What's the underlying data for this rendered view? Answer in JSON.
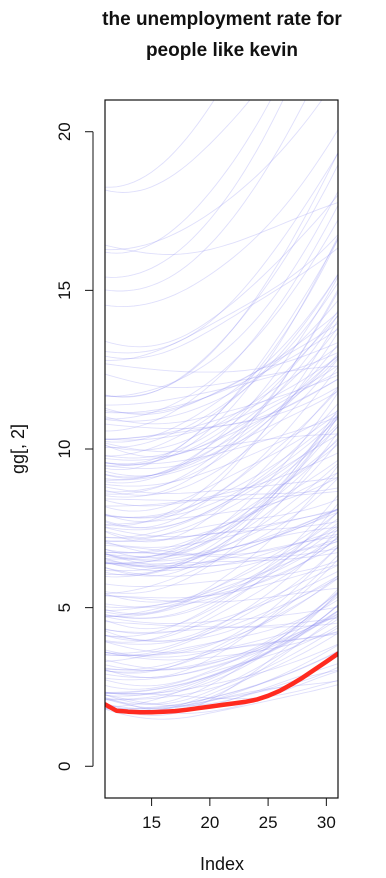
{
  "chart_data": {
    "type": "line",
    "title_lines": [
      "the unemployment rate for",
      "people like kevin"
    ],
    "xlabel": "Index",
    "ylabel": "gg[, 2]",
    "xlim": [
      11,
      31
    ],
    "ylim": [
      -1,
      21
    ],
    "x_ticks": [
      15,
      20,
      25,
      30
    ],
    "y_ticks": [
      0,
      5,
      10,
      15,
      20
    ],
    "background_series_color": "#8c8cf0",
    "background_series_count": 170,
    "background_series_start_range": [
      1.8,
      19
    ],
    "background_series_growth_range": [
      0.1,
      5.5
    ],
    "highlight_series": {
      "color": "#ff2a1f",
      "x": [
        11,
        12,
        13,
        14,
        15,
        16,
        17,
        18,
        19,
        20,
        21,
        22,
        23,
        24,
        25,
        26,
        27,
        28,
        29,
        30,
        31
      ],
      "values": [
        1.95,
        1.75,
        1.72,
        1.7,
        1.7,
        1.72,
        1.74,
        1.78,
        1.83,
        1.88,
        1.93,
        1.98,
        2.03,
        2.1,
        2.22,
        2.38,
        2.58,
        2.8,
        3.05,
        3.3,
        3.55
      ]
    }
  }
}
